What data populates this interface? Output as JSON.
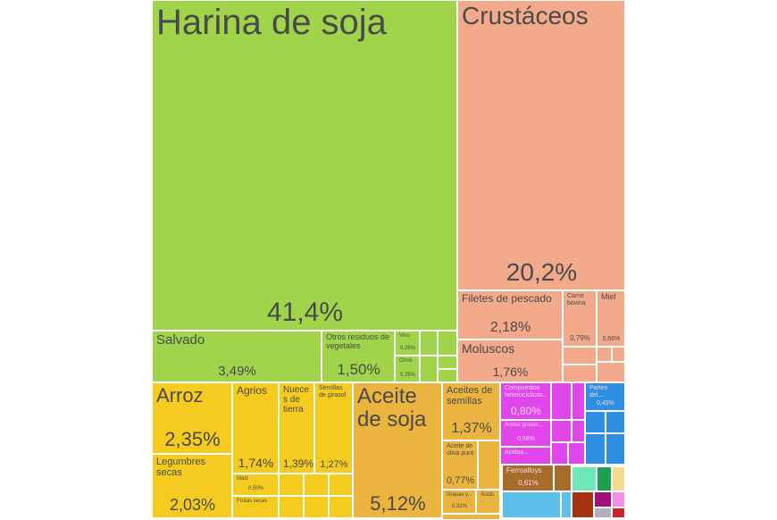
{
  "chart_data": {
    "type": "treemap",
    "title": "",
    "colors": {
      "vegetable": "#a0d44a",
      "animal": "#f2aa8a",
      "foodstuff_yellow": "#f4cb1e",
      "fats": "#ebb43f",
      "chemicals": "#e046ea",
      "plastics": "#2f8fe2",
      "metals": "#a86c2a",
      "mint": "#6ee8b8",
      "lightblue": "#5cc0ea",
      "darkred": "#a83210",
      "green": "#1ea050",
      "purple": "#a0107a",
      "cream": "#f2dc8c",
      "pink": "#f090e8",
      "grey": "#b0b0c0",
      "red": "#d0202c"
    },
    "items": [
      {
        "label": "Harina de soja",
        "value": "41,4%",
        "group": "vegetable"
      },
      {
        "label": "Crustáceos",
        "value": "20,2%",
        "group": "animal"
      },
      {
        "label": "Salvado",
        "value": "3,49%",
        "group": "vegetable"
      },
      {
        "label": "Otros residuos de vegetales",
        "value": "1,50%",
        "group": "vegetable"
      },
      {
        "label": "Vino",
        "value": "0,28%",
        "group": "vegetable"
      },
      {
        "label": "Otros",
        "value": "0,25%",
        "group": "vegetable"
      },
      {
        "label": "Filetes de pescado",
        "value": "2,18%",
        "group": "animal"
      },
      {
        "label": "Moluscos",
        "value": "1,76%",
        "group": "animal"
      },
      {
        "label": "Carne bovina",
        "value": "0,79%",
        "group": "animal"
      },
      {
        "label": "Miel",
        "value": "0,66%",
        "group": "animal"
      },
      {
        "label": "Arroz",
        "value": "2,35%",
        "group": "foodstuff_yellow"
      },
      {
        "label": "Legumbres secas",
        "value": "2,03%",
        "group": "foodstuff_yellow"
      },
      {
        "label": "Agrios",
        "value": "1,74%",
        "group": "foodstuff_yellow"
      },
      {
        "label": "Nueces de tierra",
        "value": "1,39%",
        "group": "foodstuff_yellow"
      },
      {
        "label": "Semillas de girasol",
        "value": "1,27%",
        "group": "foodstuff_yellow"
      },
      {
        "label": "Maíz",
        "value": "0,50%",
        "group": "foodstuff_yellow"
      },
      {
        "label": "Frutas secas",
        "value": "",
        "group": "foodstuff_yellow"
      },
      {
        "label": "Aceite de soja",
        "value": "5,12%",
        "group": "fats"
      },
      {
        "label": "Aceites de semillas",
        "value": "1,37%",
        "group": "fats"
      },
      {
        "label": "Aceite de oliva puro",
        "value": "0,77%",
        "group": "fats"
      },
      {
        "label": "Grasas y...",
        "value": "0,32%",
        "group": "fats"
      },
      {
        "label": "Ácido...",
        "value": "",
        "group": "fats"
      },
      {
        "label": "Compuestos heterocíclicos...",
        "value": "0,80%",
        "group": "chemicals"
      },
      {
        "label": "Ácidos grasos...",
        "value": "0,58%",
        "group": "chemicals"
      },
      {
        "label": "Ácidos...",
        "value": "",
        "group": "chemicals"
      },
      {
        "label": "Partes del...",
        "value": "0,45%",
        "group": "plastics"
      },
      {
        "label": "Ferroalloys",
        "value": "0,61%",
        "group": "metals"
      }
    ]
  }
}
